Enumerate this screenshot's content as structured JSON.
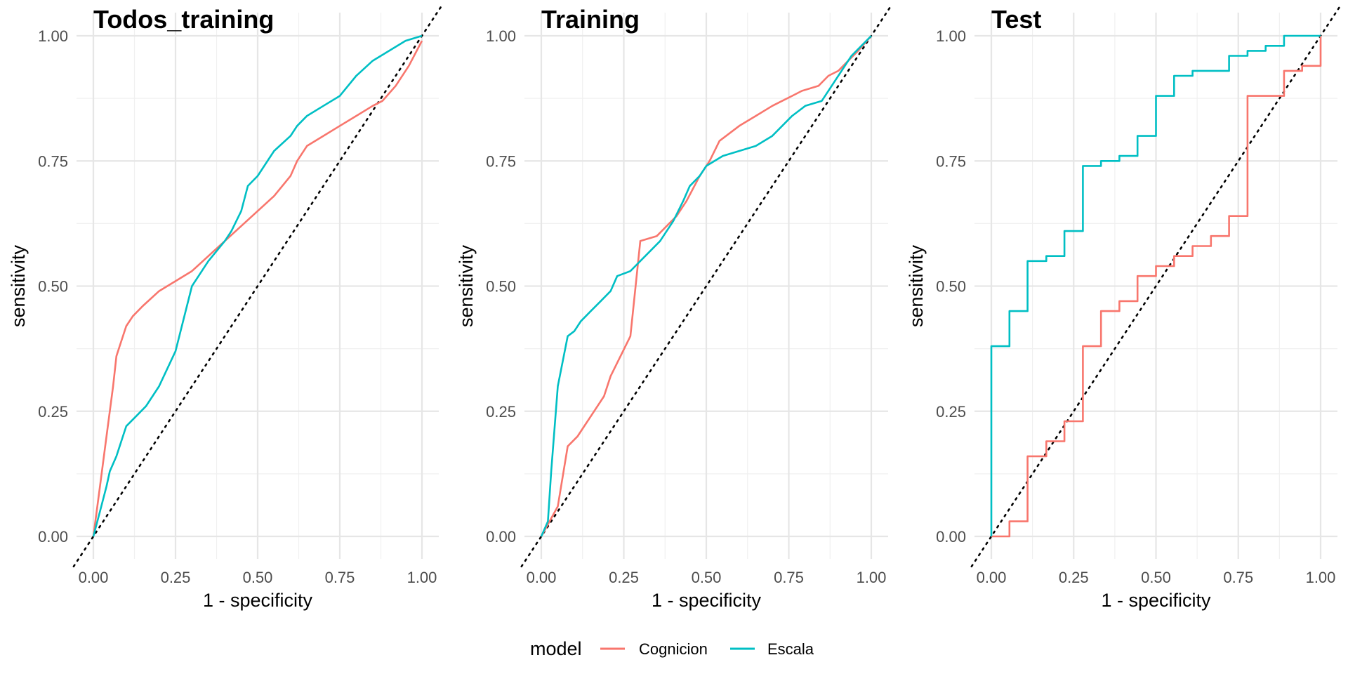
{
  "chart_data": [
    {
      "type": "line",
      "title": "Todos_training",
      "xlabel": "1 - specificity",
      "ylabel": "sensitivity",
      "xlim": [
        0,
        1
      ],
      "ylim": [
        0,
        1
      ],
      "xticks": [
        "0.00",
        "0.25",
        "0.50",
        "0.75",
        "1.00"
      ],
      "yticks": [
        "0.00",
        "0.25",
        "0.50",
        "0.75",
        "1.00"
      ],
      "grid": true,
      "series": [
        {
          "name": "Cognicion",
          "color": "#F8766D",
          "x": [
            0,
            0.02,
            0.04,
            0.06,
            0.07,
            0.08,
            0.1,
            0.12,
            0.15,
            0.2,
            0.25,
            0.3,
            0.35,
            0.4,
            0.45,
            0.5,
            0.55,
            0.6,
            0.62,
            0.65,
            0.7,
            0.75,
            0.8,
            0.85,
            0.88,
            0.92,
            0.96,
            1
          ],
          "y": [
            0,
            0.1,
            0.2,
            0.3,
            0.36,
            0.38,
            0.42,
            0.44,
            0.46,
            0.49,
            0.51,
            0.53,
            0.56,
            0.59,
            0.62,
            0.65,
            0.68,
            0.72,
            0.75,
            0.78,
            0.8,
            0.82,
            0.84,
            0.86,
            0.87,
            0.9,
            0.94,
            0.99
          ]
        },
        {
          "name": "Escala",
          "color": "#00BFC4",
          "x": [
            0,
            0.02,
            0.04,
            0.05,
            0.07,
            0.09,
            0.1,
            0.13,
            0.16,
            0.2,
            0.25,
            0.3,
            0.32,
            0.35,
            0.4,
            0.42,
            0.45,
            0.47,
            0.5,
            0.55,
            0.6,
            0.62,
            0.65,
            0.7,
            0.75,
            0.8,
            0.85,
            0.9,
            0.95,
            1
          ],
          "y": [
            0,
            0.05,
            0.1,
            0.13,
            0.16,
            0.2,
            0.22,
            0.24,
            0.26,
            0.3,
            0.37,
            0.5,
            0.52,
            0.55,
            0.59,
            0.61,
            0.65,
            0.7,
            0.72,
            0.77,
            0.8,
            0.82,
            0.84,
            0.86,
            0.88,
            0.92,
            0.95,
            0.97,
            0.99,
            1
          ]
        }
      ]
    },
    {
      "type": "line",
      "title": "Training",
      "xlabel": "1 - specificity",
      "ylabel": "sensitivity",
      "xlim": [
        0,
        1
      ],
      "ylim": [
        0,
        1
      ],
      "xticks": [
        "0.00",
        "0.25",
        "0.50",
        "0.75",
        "1.00"
      ],
      "yticks": [
        "0.00",
        "0.25",
        "0.50",
        "0.75",
        "1.00"
      ],
      "grid": true,
      "series": [
        {
          "name": "Cognicion",
          "color": "#F8766D",
          "x": [
            0,
            0.05,
            0.08,
            0.11,
            0.13,
            0.16,
            0.19,
            0.21,
            0.24,
            0.27,
            0.3,
            0.35,
            0.38,
            0.41,
            0.44,
            0.48,
            0.51,
            0.54,
            0.6,
            0.65,
            0.7,
            0.73,
            0.76,
            0.79,
            0.84,
            0.87,
            0.9,
            0.93,
            0.96,
            1
          ],
          "y": [
            0,
            0.06,
            0.18,
            0.2,
            0.22,
            0.25,
            0.28,
            0.32,
            0.36,
            0.4,
            0.59,
            0.6,
            0.62,
            0.64,
            0.67,
            0.72,
            0.75,
            0.79,
            0.82,
            0.84,
            0.86,
            0.87,
            0.88,
            0.89,
            0.9,
            0.92,
            0.93,
            0.95,
            0.97,
            1
          ]
        },
        {
          "name": "Escala",
          "color": "#00BFC4",
          "x": [
            0,
            0.02,
            0.03,
            0.05,
            0.08,
            0.1,
            0.12,
            0.15,
            0.18,
            0.21,
            0.23,
            0.27,
            0.3,
            0.36,
            0.4,
            0.43,
            0.45,
            0.48,
            0.5,
            0.55,
            0.6,
            0.65,
            0.7,
            0.73,
            0.76,
            0.8,
            0.85,
            0.88,
            0.91,
            0.94,
            0.97,
            1
          ],
          "y": [
            0,
            0.03,
            0.13,
            0.3,
            0.4,
            0.41,
            0.43,
            0.45,
            0.47,
            0.49,
            0.52,
            0.53,
            0.55,
            0.59,
            0.63,
            0.67,
            0.7,
            0.72,
            0.74,
            0.76,
            0.77,
            0.78,
            0.8,
            0.82,
            0.84,
            0.86,
            0.87,
            0.9,
            0.93,
            0.96,
            0.98,
            1
          ]
        }
      ]
    },
    {
      "type": "line",
      "title": "Test",
      "xlabel": "1 - specificity",
      "ylabel": "sensitivity",
      "xlim": [
        0,
        1
      ],
      "ylim": [
        0,
        1
      ],
      "xticks": [
        "0.00",
        "0.25",
        "0.50",
        "0.75",
        "1.00"
      ],
      "yticks": [
        "0.00",
        "0.25",
        "0.50",
        "0.75",
        "1.00"
      ],
      "grid": true,
      "series": [
        {
          "name": "Cognicion",
          "color": "#F8766D",
          "step": true,
          "x": [
            0,
            0.055,
            0.11,
            0.167,
            0.222,
            0.278,
            0.333,
            0.389,
            0.444,
            0.5,
            0.555,
            0.611,
            0.667,
            0.722,
            0.778,
            0.889,
            0.944,
            1
          ],
          "y": [
            0,
            0.03,
            0.16,
            0.19,
            0.23,
            0.38,
            0.45,
            0.47,
            0.52,
            0.54,
            0.56,
            0.58,
            0.6,
            0.64,
            0.88,
            0.93,
            0.94,
            1
          ]
        },
        {
          "name": "Escala",
          "color": "#00BFC4",
          "step": true,
          "x": [
            0,
            0.055,
            0.11,
            0.167,
            0.222,
            0.278,
            0.333,
            0.389,
            0.444,
            0.5,
            0.555,
            0.611,
            0.722,
            0.778,
            0.833,
            0.889,
            1
          ],
          "y": [
            0.38,
            0.45,
            0.55,
            0.56,
            0.61,
            0.74,
            0.75,
            0.76,
            0.8,
            0.88,
            0.92,
            0.93,
            0.96,
            0.97,
            0.98,
            1,
            1
          ]
        }
      ]
    }
  ],
  "legend": {
    "title": "model",
    "placement": "bottom",
    "items": [
      {
        "label": "Cognicion",
        "color": "#F8766D"
      },
      {
        "label": "Escala",
        "color": "#00BFC4"
      }
    ]
  }
}
